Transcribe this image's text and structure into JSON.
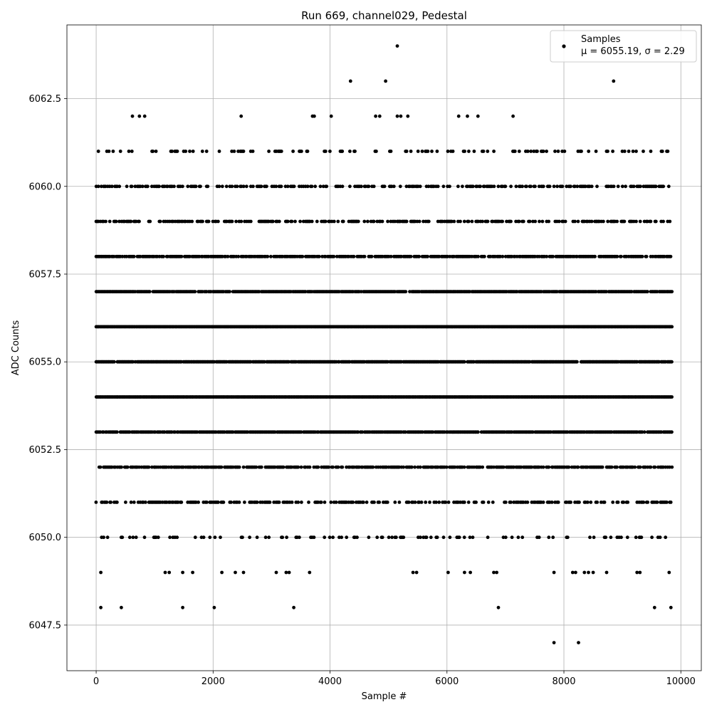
{
  "chart_data": {
    "type": "scatter",
    "title": "Run 669, channel029, Pedestal",
    "xlabel": "Sample #",
    "ylabel": "ADC Counts",
    "xlim": [
      -500,
      10350
    ],
    "ylim": [
      6046.2,
      6064.6
    ],
    "x_ticks": [
      0,
      2000,
      4000,
      6000,
      8000,
      10000
    ],
    "x_tick_labels": [
      "0",
      "2000",
      "4000",
      "6000",
      "8000",
      "10000"
    ],
    "y_ticks": [
      6047.5,
      6050.0,
      6052.5,
      6055.0,
      6057.5,
      6060.0,
      6062.5
    ],
    "y_tick_labels": [
      "6047.5",
      "6050.0",
      "6052.5",
      "6055.0",
      "6057.5",
      "6060.0",
      "6062.5"
    ],
    "grid": true,
    "legend_position": "top-right",
    "marker_color": "#000000",
    "series": [
      {
        "name": "Samples",
        "label_line2": "μ = 6055.19, σ = 2.29",
        "mean": 6055.19,
        "sigma": 2.29,
        "x_range": [
          0,
          9850
        ],
        "levels": [
          {
            "y": 6054,
            "density": 1.0
          },
          {
            "y": 6056,
            "density": 1.0
          },
          {
            "y": 6053,
            "density": 0.92
          },
          {
            "y": 6055,
            "density": 0.92
          },
          {
            "y": 6057,
            "density": 0.92
          },
          {
            "y": 6058,
            "density": 0.75
          },
          {
            "y": 6052,
            "density": 0.7
          },
          {
            "y": 6051,
            "density": 0.45
          },
          {
            "y": 6059,
            "density": 0.45
          },
          {
            "y": 6060,
            "density": 0.45
          },
          {
            "y": 6050,
            "density": 0.2
          },
          {
            "y": 6061,
            "density": 0.2
          }
        ],
        "points": [
          [
            620,
            6062
          ],
          [
            740,
            6062
          ],
          [
            830,
            6062
          ],
          [
            2480,
            6062
          ],
          [
            3700,
            6062
          ],
          [
            3730,
            6062
          ],
          [
            4020,
            6062
          ],
          [
            4780,
            6062
          ],
          [
            4850,
            6062
          ],
          [
            5150,
            6062
          ],
          [
            5210,
            6062
          ],
          [
            5330,
            6062
          ],
          [
            6200,
            6062
          ],
          [
            6350,
            6062
          ],
          [
            6530,
            6062
          ],
          [
            7130,
            6062
          ],
          [
            4350,
            6063
          ],
          [
            4950,
            6063
          ],
          [
            8850,
            6063
          ],
          [
            5150,
            6064
          ],
          [
            80,
            6049
          ],
          [
            1180,
            6049
          ],
          [
            1250,
            6049
          ],
          [
            1480,
            6049
          ],
          [
            1650,
            6049
          ],
          [
            2150,
            6049
          ],
          [
            2380,
            6049
          ],
          [
            2520,
            6049
          ],
          [
            3080,
            6049
          ],
          [
            3250,
            6049
          ],
          [
            3300,
            6049
          ],
          [
            3650,
            6049
          ],
          [
            5420,
            6049
          ],
          [
            5480,
            6049
          ],
          [
            6020,
            6049
          ],
          [
            6300,
            6049
          ],
          [
            6400,
            6049
          ],
          [
            6800,
            6049
          ],
          [
            6850,
            6049
          ],
          [
            7830,
            6049
          ],
          [
            8150,
            6049
          ],
          [
            8200,
            6049
          ],
          [
            8350,
            6049
          ],
          [
            8420,
            6049
          ],
          [
            8500,
            6049
          ],
          [
            8730,
            6049
          ],
          [
            9250,
            6049
          ],
          [
            9300,
            6049
          ],
          [
            9800,
            6049
          ],
          [
            80,
            6048
          ],
          [
            430,
            6048
          ],
          [
            1480,
            6048
          ],
          [
            2020,
            6048
          ],
          [
            3380,
            6048
          ],
          [
            6880,
            6048
          ],
          [
            9550,
            6048
          ],
          [
            9830,
            6048
          ],
          [
            7830,
            6047
          ],
          [
            8250,
            6047
          ],
          [
            0,
            6058
          ]
        ]
      }
    ]
  }
}
